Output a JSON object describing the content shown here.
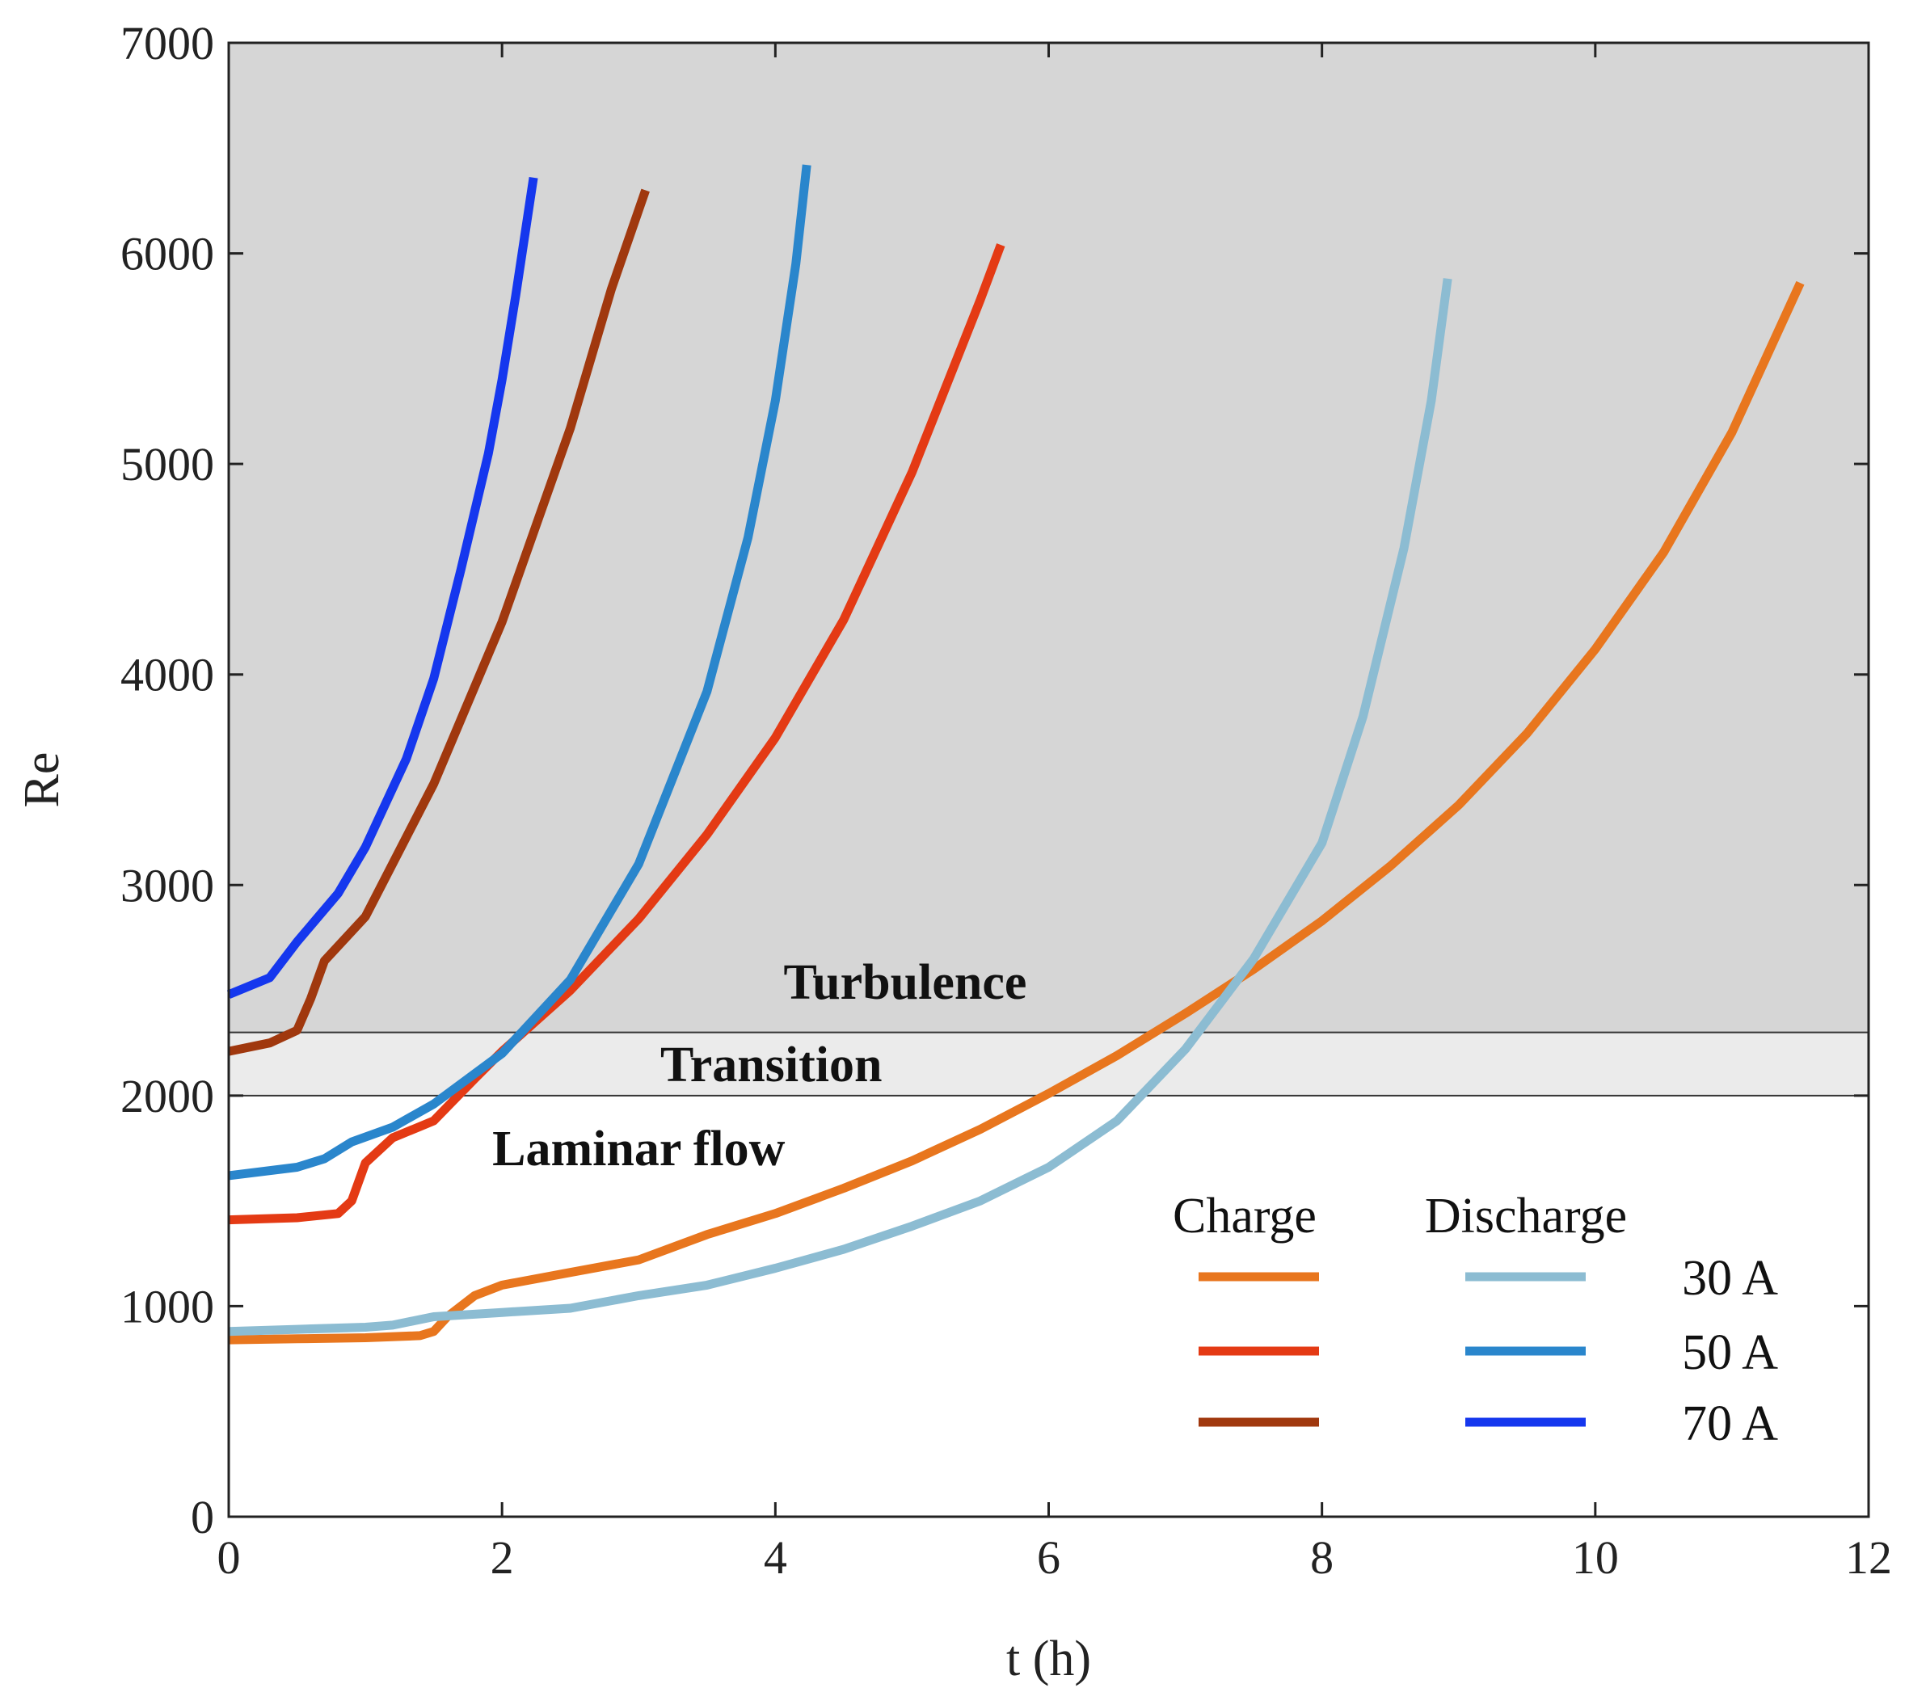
{
  "chart_data": {
    "type": "line",
    "title": "",
    "xlabel": "t (h)",
    "ylabel": "Re",
    "xlim": [
      0,
      12
    ],
    "ylim": [
      0,
      7000
    ],
    "xticks": [
      0,
      2,
      4,
      6,
      8,
      10,
      12
    ],
    "yticks": [
      0,
      1000,
      2000,
      3000,
      4000,
      5000,
      6000,
      7000
    ],
    "xtick_labels": [
      "0",
      "2",
      "4",
      "6",
      "8",
      "10",
      "12"
    ],
    "ytick_labels": [
      "0",
      "1000",
      "2000",
      "3000",
      "4000",
      "5000",
      "6000",
      "7000"
    ],
    "regions": [
      {
        "name": "Laminar flow",
        "y_from": 0,
        "y_to": 2000,
        "color": "#ffffff",
        "label_x": 3.0,
        "label_y": 1750
      },
      {
        "name": "Transition",
        "y_from": 2000,
        "y_to": 2300,
        "color": "#ebebeb",
        "label_x": 3.97,
        "label_y": 2150
      },
      {
        "name": "Turbulence",
        "y_from": 2300,
        "y_to": 7000,
        "color": "#d6d6d6",
        "label_x": 4.95,
        "label_y": 2540
      }
    ],
    "legend": {
      "position": "bottom-right",
      "charge_header": "Charge",
      "discharge_header": "Discharge",
      "currents": [
        "30 A",
        "50 A",
        "70 A"
      ]
    },
    "series": [
      {
        "name": "Charge 30 A",
        "mode": "Charge",
        "current": "30 A",
        "color": "#e8761e",
        "x": [
          0,
          0.5,
          1.0,
          1.4,
          1.5,
          1.6,
          1.8,
          2.0,
          2.5,
          3.0,
          3.5,
          4.0,
          4.5,
          5.0,
          5.5,
          6.0,
          6.5,
          7.0,
          7.5,
          8.0,
          8.5,
          9.0,
          9.5,
          10.0,
          10.5,
          11.0,
          11.5
        ],
        "y": [
          840,
          845,
          850,
          860,
          880,
          950,
          1050,
          1100,
          1160,
          1220,
          1340,
          1440,
          1560,
          1690,
          1840,
          2010,
          2190,
          2390,
          2600,
          2830,
          3090,
          3380,
          3720,
          4120,
          4580,
          5150,
          5860
        ]
      },
      {
        "name": "Charge 50 A",
        "mode": "Charge",
        "current": "50 A",
        "color": "#e43a14",
        "x": [
          0,
          0.5,
          0.8,
          0.9,
          1.0,
          1.2,
          1.5,
          1.8,
          2.0,
          2.5,
          3.0,
          3.5,
          4.0,
          4.5,
          5.0,
          5.5,
          5.65
        ],
        "y": [
          1410,
          1420,
          1440,
          1500,
          1680,
          1800,
          1880,
          2080,
          2210,
          2500,
          2840,
          3240,
          3700,
          4260,
          4960,
          5780,
          6040
        ]
      },
      {
        "name": "Charge 70 A",
        "mode": "Charge",
        "current": "70 A",
        "color": "#a0380e",
        "x": [
          0,
          0.3,
          0.5,
          0.6,
          0.7,
          1.0,
          1.5,
          2.0,
          2.5,
          2.8,
          3.05
        ],
        "y": [
          2210,
          2250,
          2310,
          2460,
          2640,
          2850,
          3480,
          4250,
          5170,
          5830,
          6300
        ]
      },
      {
        "name": "Discharge 30 A",
        "mode": "Discharge",
        "current": "30 A",
        "color": "#8cbcd2",
        "x": [
          0,
          0.5,
          1.0,
          1.2,
          1.5,
          2.0,
          2.5,
          3.0,
          3.5,
          4.0,
          4.5,
          5.0,
          5.5,
          6.0,
          6.5,
          7.0,
          7.5,
          8.0,
          8.3,
          8.6,
          8.8,
          8.92
        ],
        "y": [
          880,
          890,
          900,
          910,
          950,
          970,
          990,
          1050,
          1100,
          1180,
          1270,
          1380,
          1500,
          1660,
          1880,
          2220,
          2650,
          3200,
          3800,
          4600,
          5300,
          5880
        ]
      },
      {
        "name": "Discharge 50 A",
        "mode": "Discharge",
        "current": "50 A",
        "color": "#2a86cc",
        "x": [
          0,
          0.5,
          0.7,
          0.9,
          1.2,
          1.5,
          2.0,
          2.5,
          3.0,
          3.5,
          3.8,
          4.0,
          4.15,
          4.23
        ],
        "y": [
          1620,
          1660,
          1700,
          1780,
          1850,
          1960,
          2200,
          2550,
          3100,
          3920,
          4650,
          5300,
          5950,
          6420
        ]
      },
      {
        "name": "Discharge 70 A",
        "mode": "Discharge",
        "current": "70 A",
        "color": "#1537ee",
        "x": [
          0,
          0.3,
          0.5,
          0.8,
          1.0,
          1.3,
          1.5,
          1.7,
          1.9,
          2.0,
          2.1,
          2.23
        ],
        "y": [
          2480,
          2560,
          2730,
          2960,
          3180,
          3600,
          3980,
          4500,
          5050,
          5400,
          5800,
          6360
        ]
      }
    ]
  }
}
